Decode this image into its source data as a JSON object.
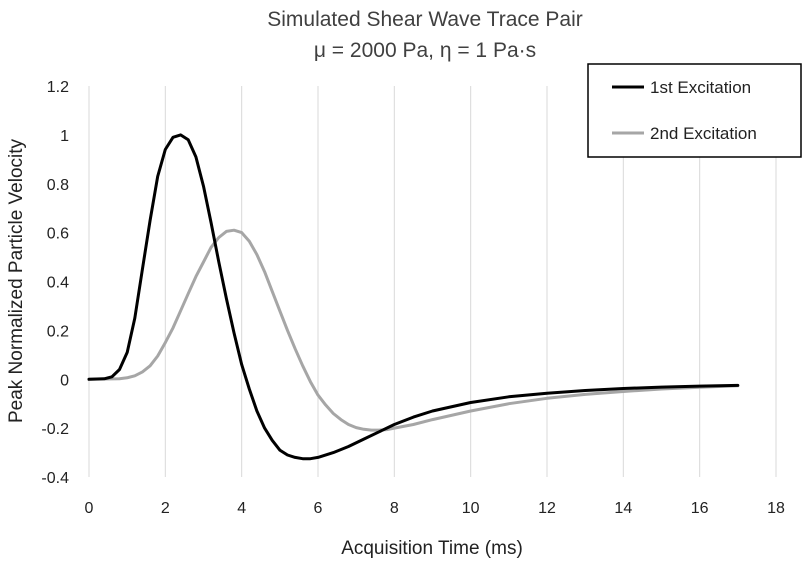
{
  "chart_data": {
    "type": "line",
    "title": "Simulated Shear Wave Trace Pair",
    "subtitle": "μ = 2000 Pa, η = 1 Pa·s",
    "xlabel": "Acquisition Time (ms)",
    "ylabel": "Peak Normalized Particle Velocity",
    "xlim": [
      0,
      18
    ],
    "ylim": [
      -0.4,
      1.2
    ],
    "xticks": [
      "0",
      "2",
      "4",
      "6",
      "8",
      "10",
      "12",
      "14",
      "16",
      "18"
    ],
    "yticks": [
      "-0.4",
      "-0.2",
      "0",
      "0.2",
      "0.4",
      "0.6",
      "0.8",
      "1",
      "1.2"
    ],
    "grid": "vertical",
    "legend": "top-right",
    "series": [
      {
        "name": "1st Excitation",
        "color": "#000000",
        "x": [
          0,
          0.4,
          0.6,
          0.8,
          1.0,
          1.2,
          1.4,
          1.6,
          1.8,
          2.0,
          2.2,
          2.4,
          2.6,
          2.8,
          3.0,
          3.2,
          3.4,
          3.6,
          3.8,
          4.0,
          4.2,
          4.4,
          4.6,
          4.8,
          5.0,
          5.2,
          5.4,
          5.6,
          5.8,
          6.0,
          6.4,
          6.8,
          7.2,
          7.6,
          8.0,
          8.5,
          9.0,
          10.0,
          11.0,
          12.0,
          13.0,
          14.0,
          15.0,
          16.0,
          17.0
        ],
        "values": [
          0,
          0.002,
          0.01,
          0.04,
          0.11,
          0.25,
          0.45,
          0.65,
          0.83,
          0.94,
          0.99,
          1.0,
          0.98,
          0.91,
          0.79,
          0.64,
          0.48,
          0.33,
          0.19,
          0.06,
          -0.04,
          -0.13,
          -0.2,
          -0.25,
          -0.29,
          -0.31,
          -0.32,
          -0.325,
          -0.325,
          -0.32,
          -0.3,
          -0.275,
          -0.245,
          -0.215,
          -0.185,
          -0.155,
          -0.13,
          -0.095,
          -0.072,
          -0.057,
          -0.046,
          -0.038,
          -0.032,
          -0.028,
          -0.025
        ]
      },
      {
        "name": "2nd Excitation",
        "color": "#a6a6a6",
        "x": [
          0,
          0.8,
          1.0,
          1.2,
          1.4,
          1.6,
          1.8,
          2.0,
          2.2,
          2.4,
          2.6,
          2.8,
          3.0,
          3.2,
          3.4,
          3.6,
          3.8,
          4.0,
          4.2,
          4.4,
          4.6,
          4.8,
          5.0,
          5.2,
          5.4,
          5.6,
          5.8,
          6.0,
          6.2,
          6.4,
          6.6,
          6.8,
          7.0,
          7.2,
          7.4,
          7.6,
          7.8,
          8.0,
          8.5,
          9.0,
          10.0,
          11.0,
          12.0,
          13.0,
          14.0,
          15.0,
          16.0,
          17.0
        ],
        "values": [
          0,
          0.002,
          0.006,
          0.014,
          0.03,
          0.055,
          0.095,
          0.15,
          0.21,
          0.28,
          0.35,
          0.42,
          0.48,
          0.54,
          0.58,
          0.605,
          0.61,
          0.6,
          0.565,
          0.51,
          0.44,
          0.36,
          0.28,
          0.2,
          0.125,
          0.055,
          -0.01,
          -0.065,
          -0.105,
          -0.14,
          -0.165,
          -0.185,
          -0.198,
          -0.205,
          -0.208,
          -0.208,
          -0.206,
          -0.2,
          -0.185,
          -0.165,
          -0.13,
          -0.1,
          -0.078,
          -0.062,
          -0.05,
          -0.04,
          -0.033,
          -0.027
        ]
      }
    ]
  }
}
